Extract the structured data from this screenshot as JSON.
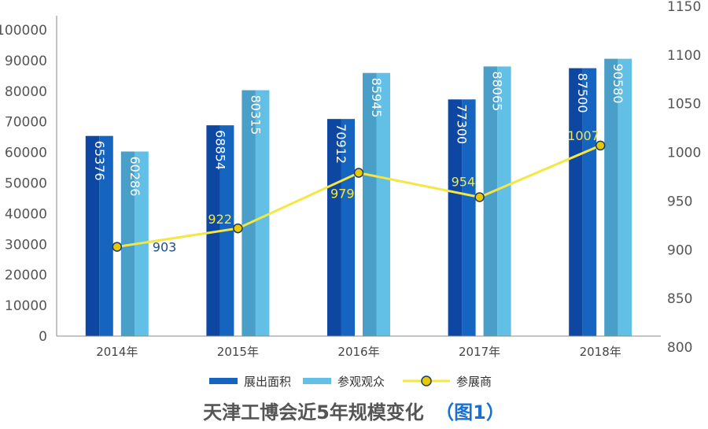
{
  "chart_data": {
    "type": "bar",
    "title": "天津工博会近5年规模变化",
    "title_suffix": "（图1）",
    "categories": [
      "2014年",
      "2015年",
      "2016年",
      "2017年",
      "2018年"
    ],
    "series": [
      {
        "name": "展出面积",
        "type": "bar",
        "axis": "left",
        "values": [
          65376,
          68854,
          70912,
          77300,
          87500
        ],
        "color": "#1565c0",
        "color_dark": "#0d47a1"
      },
      {
        "name": "参观观众",
        "type": "bar",
        "axis": "left",
        "values": [
          60286,
          80315,
          85945,
          88065,
          90580
        ],
        "color": "#62bfe6",
        "color_dark": "#4a9fc8"
      },
      {
        "name": "参展商",
        "type": "line",
        "axis": "right",
        "values": [
          903,
          922,
          979,
          954,
          1007
        ],
        "color": "#f5e642",
        "marker_fill": "#e8c900",
        "marker_stroke": "#1a3a6e"
      }
    ],
    "left_axis": {
      "min": 0,
      "max": 100000,
      "ticks": [
        0,
        10000,
        20000,
        30000,
        40000,
        50000,
        60000,
        70000,
        80000,
        90000,
        100000
      ]
    },
    "right_axis": {
      "min": 800,
      "max": 1150,
      "ticks": [
        800,
        850,
        900,
        950,
        1000,
        1050,
        1100,
        1150
      ]
    },
    "legend": {
      "placement": "bottom",
      "items": [
        "展出面积",
        "参观观众",
        "参展商"
      ]
    },
    "grid": false,
    "line_label_colors": [
      "#1a4f8a",
      "#f5e642",
      "#f5e642",
      "#f5e642",
      "#f5e642"
    ]
  }
}
